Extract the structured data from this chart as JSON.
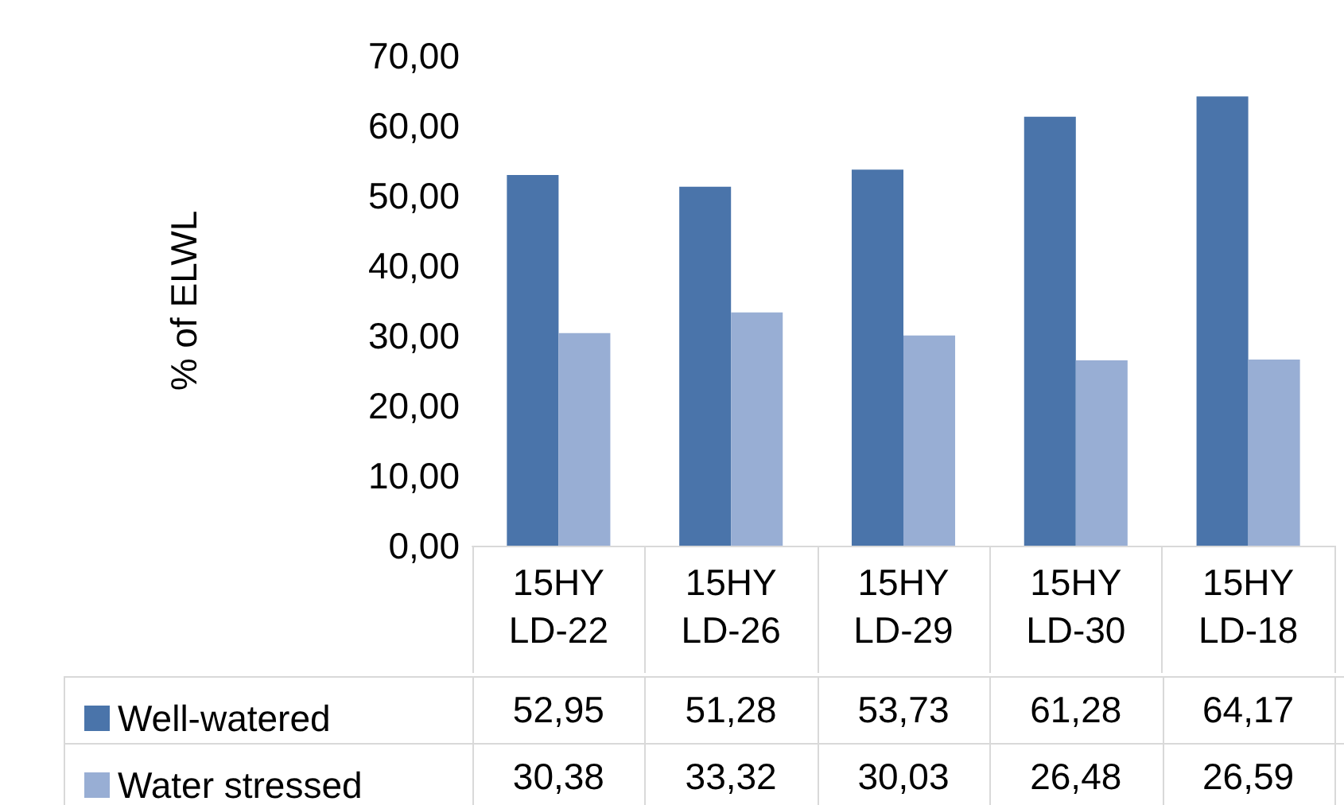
{
  "chart_data": {
    "type": "bar",
    "ylabel": "% of ELWL",
    "categories": [
      "15HY LD-22",
      "15HY LD-26",
      "15HY LD-29",
      "15HY LD-30",
      "15HY LD-18"
    ],
    "series": [
      {
        "name": "Well-watered",
        "color": "#4a74aa",
        "values": [
          52.95,
          51.28,
          53.73,
          61.28,
          64.17
        ],
        "value_labels": [
          "52,95",
          "51,28",
          "53,73",
          "61,28",
          "64,17"
        ]
      },
      {
        "name": "Water stressed",
        "color": "#98aed4",
        "values": [
          30.38,
          33.32,
          30.03,
          26.48,
          26.59
        ],
        "value_labels": [
          "30,38",
          "33,32",
          "30,03",
          "26,48",
          "26,59"
        ]
      }
    ],
    "ylim": [
      0,
      70
    ],
    "yticks": [
      {
        "value": 0,
        "label": "0,00"
      },
      {
        "value": 10,
        "label": "10,00"
      },
      {
        "value": 20,
        "label": "20,00"
      },
      {
        "value": 30,
        "label": "30,00"
      },
      {
        "value": 40,
        "label": "40,00"
      },
      {
        "value": 50,
        "label": "50,00"
      },
      {
        "value": 60,
        "label": "60,00"
      },
      {
        "value": 70,
        "label": "70,00"
      }
    ],
    "legend": "bottom left"
  }
}
